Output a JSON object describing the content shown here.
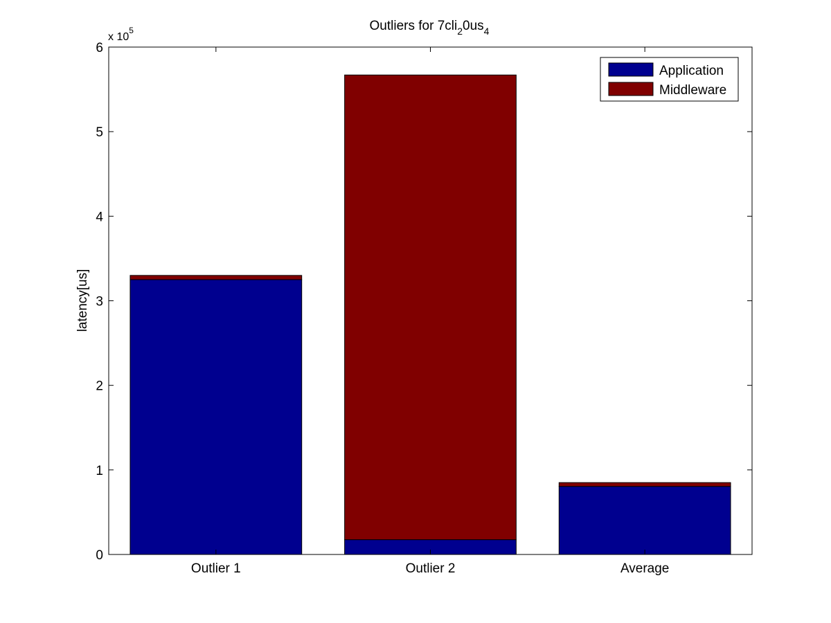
{
  "chart_data": {
    "type": "bar",
    "stacked": true,
    "title": {
      "main": "Outliers for 7cli",
      "sub1": "2",
      "mid": "0us",
      "sub2": "4"
    },
    "ylabel": "latency[us]",
    "xlabel": "",
    "categories": [
      "Outlier 1",
      "Outlier 2",
      "Average"
    ],
    "series": [
      {
        "name": "Application",
        "color": "#00008f",
        "values": [
          325000,
          17500,
          80500
        ]
      },
      {
        "name": "Middleware",
        "color": "#800000",
        "values": [
          5000,
          549500,
          4500
        ]
      }
    ],
    "ylim": [
      0,
      600000
    ],
    "yticks": [
      0,
      100000,
      200000,
      300000,
      400000,
      500000,
      600000
    ],
    "ytick_labels": [
      "0",
      "1",
      "2",
      "3",
      "4",
      "5",
      "6"
    ],
    "y_exponent": {
      "base": "x 10",
      "power": "5"
    },
    "grid": false,
    "legend_position": "top-right"
  }
}
